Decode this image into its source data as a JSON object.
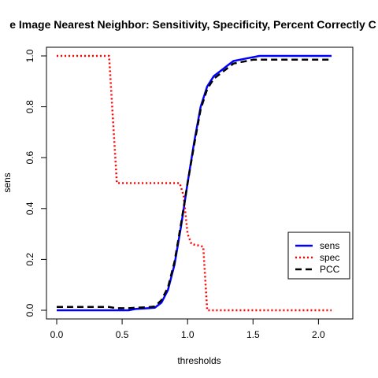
{
  "chart_data": {
    "type": "line",
    "title": "e Image Nearest Neighbor: Sensitivity, Specificity, Percent Correctly C",
    "xlabel": "thresholds",
    "ylabel": "sens",
    "xlim": [
      0.0,
      2.1
    ],
    "ylim": [
      0.0,
      1.0
    ],
    "xticks": [
      0.0,
      0.5,
      1.0,
      1.5,
      2.0
    ],
    "xtick_labels": [
      "0.0",
      "0.5",
      "1.0",
      "1.5",
      "2.0"
    ],
    "yticks": [
      0.0,
      0.2,
      0.4,
      0.6,
      0.8,
      1.0
    ],
    "ytick_labels": [
      "0.0",
      "0.2",
      "0.4",
      "0.6",
      "0.8",
      "1.0"
    ],
    "grid": false,
    "legend_position": "right",
    "series": [
      {
        "name": "sens",
        "color": "#0000FF",
        "line_style": "solid",
        "x": [
          0.0,
          0.55,
          0.6,
          0.7,
          0.75,
          0.8,
          0.85,
          0.9,
          0.95,
          1.0,
          1.05,
          1.1,
          1.15,
          1.2,
          1.25,
          1.3,
          1.35,
          1.4,
          1.45,
          1.5,
          1.55,
          1.6,
          2.1
        ],
        "y": [
          0.0,
          0.0,
          0.005,
          0.008,
          0.01,
          0.03,
          0.08,
          0.18,
          0.33,
          0.5,
          0.66,
          0.8,
          0.88,
          0.92,
          0.94,
          0.96,
          0.98,
          0.985,
          0.99,
          0.995,
          1.0,
          1.0,
          1.0
        ]
      },
      {
        "name": "spec",
        "color": "#FF0000",
        "line_style": "dotted",
        "x": [
          0.0,
          0.4,
          0.46,
          0.94,
          0.97,
          1.0,
          1.03,
          1.08,
          1.12,
          1.15,
          2.1
        ],
        "y": [
          1.0,
          1.0,
          0.5,
          0.5,
          0.45,
          0.3,
          0.26,
          0.255,
          0.25,
          0.0,
          0.0
        ]
      },
      {
        "name": "PCC",
        "color": "#000000",
        "line_style": "dashed",
        "x": [
          0.0,
          0.4,
          0.46,
          0.55,
          0.6,
          0.7,
          0.75,
          0.8,
          0.85,
          0.9,
          0.95,
          1.0,
          1.05,
          1.1,
          1.15,
          1.2,
          1.25,
          1.3,
          1.35,
          1.4,
          1.45,
          1.5,
          2.1
        ],
        "y": [
          0.013,
          0.013,
          0.008,
          0.008,
          0.01,
          0.012,
          0.015,
          0.04,
          0.09,
          0.19,
          0.34,
          0.5,
          0.65,
          0.79,
          0.87,
          0.91,
          0.93,
          0.95,
          0.97,
          0.975,
          0.98,
          0.985,
          0.985
        ]
      }
    ]
  }
}
